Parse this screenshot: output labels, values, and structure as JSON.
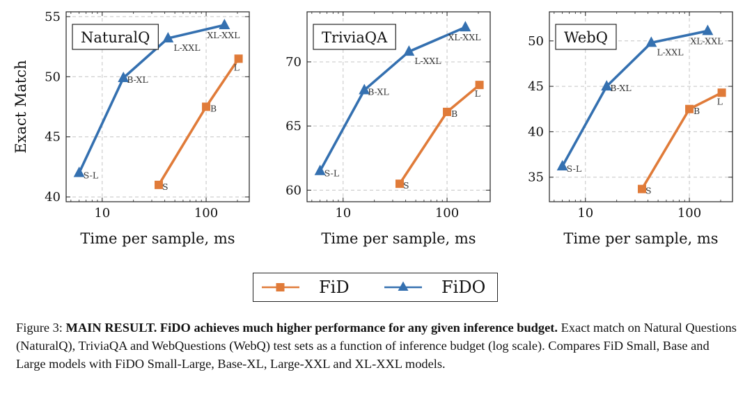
{
  "chart_data": [
    {
      "type": "line",
      "title": "NaturalQ",
      "xlabel": "Time per sample, ms",
      "ylabel": "Exact Match",
      "xscale": "log",
      "xlim": [
        4.5,
        260
      ],
      "ylim": [
        39.6,
        55.4
      ],
      "xticks": [
        10,
        100
      ],
      "xtick_labels": [
        "10",
        "100"
      ],
      "yticks": [
        40,
        45,
        50,
        55
      ],
      "ytick_labels": [
        "40",
        "45",
        "50",
        "55"
      ],
      "grid": true,
      "series": [
        {
          "name": "FiD",
          "marker": "square",
          "color": "#e07b39",
          "x": [
            35,
            100,
            205
          ],
          "y": [
            41.0,
            47.5,
            51.5
          ],
          "labels": [
            "S",
            "B",
            "L"
          ]
        },
        {
          "name": "FiDO",
          "marker": "triangle",
          "color": "#3470b0",
          "x": [
            6,
            16,
            43,
            150
          ],
          "y": [
            42.0,
            49.9,
            53.2,
            54.3
          ],
          "labels": [
            "S-L",
            "B-XL",
            "L-XXL",
            "XL-XXL"
          ]
        }
      ]
    },
    {
      "type": "line",
      "title": "TriviaQA",
      "xlabel": "Time per sample, ms",
      "ylabel": "",
      "xscale": "log",
      "xlim": [
        4.5,
        260
      ],
      "ylim": [
        59.1,
        73.9
      ],
      "xticks": [
        10,
        100
      ],
      "xtick_labels": [
        "10",
        "100"
      ],
      "yticks": [
        60,
        65,
        70
      ],
      "ytick_labels": [
        "60",
        "65",
        "70"
      ],
      "grid": true,
      "series": [
        {
          "name": "FiD",
          "marker": "square",
          "color": "#e07b39",
          "x": [
            35,
            100,
            205
          ],
          "y": [
            60.5,
            66.1,
            68.2
          ],
          "labels": [
            "S",
            "B",
            "L"
          ]
        },
        {
          "name": "FiDO",
          "marker": "triangle",
          "color": "#3470b0",
          "x": [
            6,
            16,
            43,
            150
          ],
          "y": [
            61.5,
            67.8,
            70.8,
            72.7
          ],
          "labels": [
            "S-L",
            "B-XL",
            "L-XXL",
            "XL-XXL"
          ]
        }
      ]
    },
    {
      "type": "line",
      "title": "WebQ",
      "xlabel": "Time per sample, ms",
      "ylabel": "",
      "xscale": "log",
      "xlim": [
        4.5,
        260
      ],
      "ylim": [
        32.3,
        53.2
      ],
      "xticks": [
        10,
        100
      ],
      "xtick_labels": [
        "10",
        "100"
      ],
      "yticks": [
        35,
        40,
        45,
        50
      ],
      "ytick_labels": [
        "35",
        "40",
        "45",
        "50"
      ],
      "grid": true,
      "series": [
        {
          "name": "FiD",
          "marker": "square",
          "color": "#e07b39",
          "x": [
            35,
            100,
            205
          ],
          "y": [
            33.7,
            42.5,
            44.3
          ],
          "labels": [
            "S",
            "B",
            "L"
          ]
        },
        {
          "name": "FiDO",
          "marker": "triangle",
          "color": "#3470b0",
          "x": [
            6,
            16,
            43,
            150
          ],
          "y": [
            36.2,
            45.0,
            49.8,
            51.1
          ],
          "labels": [
            "S-L",
            "B-XL",
            "L-XXL",
            "XL-XXL"
          ]
        }
      ]
    }
  ],
  "legend": {
    "items": [
      {
        "label": "FiD",
        "marker": "square",
        "color": "#e07b39"
      },
      {
        "label": "FiDO",
        "marker": "triangle",
        "color": "#3470b0"
      }
    ]
  },
  "caption": {
    "prefix": "Figure 3: ",
    "bold": "MAIN RESULT. FiDO achieves much higher performance for any given inference budget.",
    "text": " Exact match on Natural Questions (NaturalQ), TriviaQA and WebQuestions (WebQ) test sets as a function of inference budget (log scale). Compares FiD Small, Base and Large models with FiDO Small-Large, Base-XL, Large-XXL and XL-XXL models."
  }
}
